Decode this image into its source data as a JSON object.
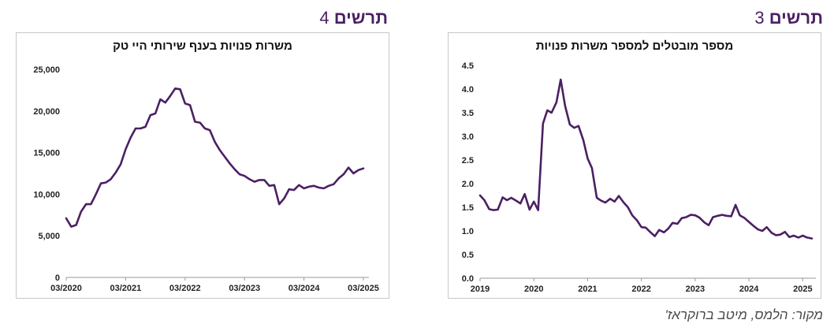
{
  "figures": [
    {
      "label_word": "תרשים",
      "label_number": "3",
      "chart_data": {
        "type": "line",
        "title": "מספר מובטלים למספר משרות פנויות",
        "xlabel": "",
        "ylabel": "",
        "x_tick_labels": [
          "2019",
          "2020",
          "2021",
          "2022",
          "2023",
          "2024",
          "2025"
        ],
        "x_tick_values": [
          2019,
          2020,
          2021,
          2022,
          2023,
          2024,
          2025
        ],
        "y_tick_labels": [
          "0.0",
          "0.5",
          "1.0",
          "1.5",
          "2.0",
          "2.5",
          "3.0",
          "3.5",
          "4.0",
          "4.5"
        ],
        "xlim": [
          2019,
          2025.2
        ],
        "ylim": [
          0,
          4.5
        ],
        "grid": false,
        "color": "#4b2063",
        "series": [
          {
            "x": [
              2019.0,
              2019.08,
              2019.17,
              2019.25,
              2019.33,
              2019.42,
              2019.5,
              2019.58,
              2019.67,
              2019.75,
              2019.83,
              2019.92,
              2020.0,
              2020.08,
              2020.17,
              2020.25,
              2020.33,
              2020.42,
              2020.5,
              2020.58,
              2020.67,
              2020.75,
              2020.83,
              2020.92,
              2021.0,
              2021.08,
              2021.17,
              2021.25,
              2021.33,
              2021.42,
              2021.5,
              2021.58,
              2021.67,
              2021.75,
              2021.83,
              2021.92,
              2022.0,
              2022.08,
              2022.17,
              2022.25,
              2022.33,
              2022.42,
              2022.5,
              2022.58,
              2022.67,
              2022.75,
              2022.83,
              2022.92,
              2023.0,
              2023.08,
              2023.17,
              2023.25,
              2023.33,
              2023.42,
              2023.5,
              2023.58,
              2023.67,
              2023.75,
              2023.83,
              2023.92,
              2024.0,
              2024.08,
              2024.17,
              2024.25,
              2024.33,
              2024.42,
              2024.5,
              2024.58,
              2024.67,
              2024.75,
              2024.83,
              2024.92,
              2025.0,
              2025.08,
              2025.17
            ],
            "y": [
              1.75,
              1.65,
              1.46,
              1.44,
              1.45,
              1.71,
              1.65,
              1.7,
              1.64,
              1.58,
              1.78,
              1.45,
              1.62,
              1.44,
              3.27,
              3.55,
              3.5,
              3.72,
              4.2,
              3.65,
              3.25,
              3.18,
              3.22,
              2.92,
              2.53,
              2.33,
              1.7,
              1.64,
              1.6,
              1.68,
              1.62,
              1.74,
              1.6,
              1.5,
              1.33,
              1.22,
              1.08,
              1.07,
              0.97,
              0.89,
              1.02,
              0.97,
              1.05,
              1.17,
              1.15,
              1.27,
              1.29,
              1.34,
              1.33,
              1.28,
              1.18,
              1.12,
              1.29,
              1.32,
              1.34,
              1.32,
              1.31,
              1.55,
              1.33,
              1.27,
              1.19,
              1.11,
              1.03,
              1.0,
              1.08,
              0.96,
              0.91,
              0.92,
              0.98,
              0.87,
              0.9,
              0.86,
              0.9,
              0.86,
              0.84
            ]
          }
        ]
      }
    },
    {
      "label_word": "תרשים",
      "label_number": "4",
      "chart_data": {
        "type": "line",
        "title": "משרות פנויות בענף שירותי היי טק",
        "xlabel": "",
        "ylabel": "",
        "x_tick_labels": [
          "03/2020",
          "03/2021",
          "03/2022",
          "03/2023",
          "03/2024",
          "03/2025"
        ],
        "x_tick_values": [
          0,
          12,
          24,
          36,
          48,
          60
        ],
        "y_tick_labels": [
          "0",
          "5,000",
          "10,000",
          "15,000",
          "20,000",
          "25,000"
        ],
        "xlim": [
          0,
          60
        ],
        "ylim": [
          0,
          25000
        ],
        "grid": false,
        "color": "#4b2063",
        "series": [
          {
            "x": [
              0,
              1,
              2,
              3,
              4,
              5,
              6,
              7,
              8,
              9,
              10,
              11,
              12,
              13,
              14,
              15,
              16,
              17,
              18,
              19,
              20,
              21,
              22,
              23,
              24,
              25,
              26,
              27,
              28,
              29,
              30,
              31,
              32,
              33,
              34,
              35,
              36,
              37,
              38,
              39,
              40,
              41,
              42,
              43,
              44,
              45,
              46,
              47,
              48,
              49,
              50,
              51,
              52,
              53,
              54,
              55,
              56,
              57,
              58,
              59,
              60
            ],
            "y": [
              7100,
              6100,
              6300,
              7900,
              8800,
              8800,
              10000,
              11300,
              11400,
              11800,
              12600,
              13600,
              15400,
              16800,
              17900,
              17900,
              18100,
              19500,
              19700,
              21400,
              21000,
              21800,
              22700,
              22600,
              20900,
              20700,
              18700,
              18600,
              17900,
              17700,
              16300,
              15300,
              14500,
              13700,
              13000,
              12400,
              12200,
              11800,
              11500,
              11700,
              11700,
              11000,
              11100,
              8800,
              9500,
              10600,
              10500,
              11100,
              10700,
              10900,
              11000,
              10800,
              10700,
              11000,
              11200,
              11900,
              12400,
              13200,
              12500,
              12900,
              13100
            ]
          }
        ]
      }
    }
  ],
  "source": "מקור: הלמס, מיטב ברוקראז'"
}
